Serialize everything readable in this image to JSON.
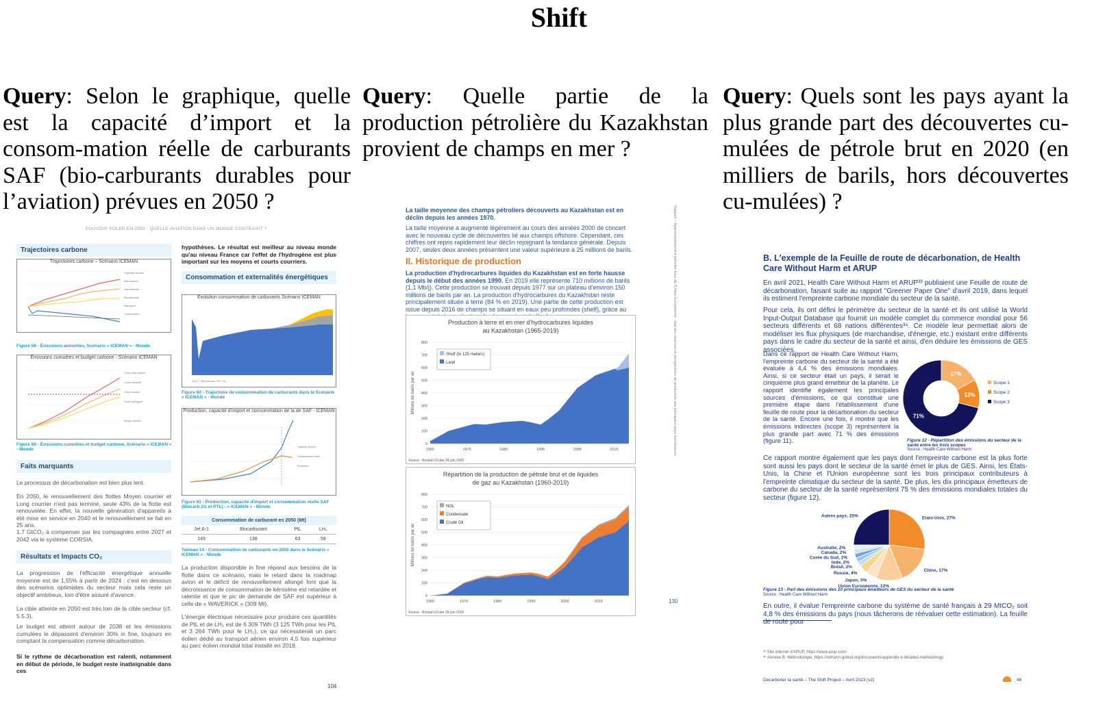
{
  "header": {
    "title": "Shift"
  },
  "queries": [
    {
      "label": "Query",
      "text": ":  Selon le graphique, quelle est la capacité d’import et la consom-mation réelle de carburants SAF (bio-carburants durables pour l’aviation) prévues en 2050 ?"
    },
    {
      "label": "Query",
      "text": ": Quelle partie de la production pétrolière du Kazakhstan provient de champs en mer ?"
    },
    {
      "label": "Query",
      "text": ": Quels sont les pays ayant la plus grande part des découvertes cu-mulées de pétrole brut en 2020 (en milliers de barils, hors découvertes cu-mulées) ?"
    }
  ],
  "doc1": {
    "running_header": "POUVOIR VOLER EN 2050 : QUELLE AVIATION DANS UN MONDE CONTRAINT ?",
    "sec_trajectoires": "Trajectoires carbone",
    "chart1_title": "Trajectoires carbone – Scénario ICEMAN",
    "fig58": "Figure 58 - Émissions annuelles, Scénario « ICEMAN » - Monde",
    "chart2_title": "Émissions cumulées et budget carbone - Scénario ICEMAN",
    "fig59": "Figure 59 - Émissions cumulées et budget carbone, Scénario « ICEMAN » - Monde",
    "sec_faits": "Faits marquants",
    "faits_p1": "Le processus de décarbonation est bien plus lent.",
    "faits_p2": "En 2050, le renouvellement des flottes Moyen courrier et Long courrier n'est pas terminé, seule 43% de la flotte est renouvelée. En effet, la nouvelle génération d'appareils a été mise en service en 2040 et le renouvellement se fait en 25 ans.",
    "faits_p3": "1,7 GtCO₂ à compenser par les compagnies entre 2027 et 2042 via le système CORSIA.",
    "sec_resultats": "Résultats et Impacts CO₂",
    "res_p1": "La progression de l'efficacité énergétique annuelle moyenne est de 1,55% à partir de 2024 : c'est en dessous des scénarios optimistes du secteur mais cela reste un objectif ambitieux, loin d'être assuré d'avance.",
    "res_p2": "La cible atteinte en 2050 est très loin de la cible secteur (cf. 5.5.3).",
    "res_p3": "Le budget est atteint autour de 2038 et les émissions cumulées le dépassent d'environ 30% in fine, toujours en comptant la compensation comme décarbonation.",
    "res_bold": "Si le rythme de décarbonation est ralenti, notamment en début de période, le budget reste inatteignable dans ces",
    "right_intro": "hypothèses. Le résultat est meilleur au niveau monde qu'au niveau France car l'effet de l'hydrogène est plus important sur les moyens et courts courriers.",
    "sec_conso": "Consommation et externalités énergétiques",
    "chart3_title": "Evolution consommation de carburants  Scénario ICEMAN",
    "fig60": "Figure 60 - Trajectoire de consommation de carburants dans le Scénario « ICEMAN » - Monde",
    "chart4_title": "Production, capacité d'import et consommation de la de SAF - ICEMAN",
    "fig61": "Figure 61 - Production, capacité d'import et consommation réelle SAF (Biocarb 2G et PTL) - « ICEMAN » - Monde",
    "table_title": "Consommation de carburant en 2050 (Mt)",
    "table_headers": [
      "Jet A-1",
      "Biocarburant",
      "PtL",
      "LH₂"
    ],
    "table_values": [
      "149",
      "138",
      "63",
      "58"
    ],
    "tab14": "Tableau 14 - Consommation de carburants en 2050 dans le Scénario « ICEMAN » - Monde",
    "right_p1": "La production disponible in fine répond aux besoins de la flotte dans ce scénario, mais le retard dans la roadmap avion et le déficit de renouvellement allongé font que la décroissance de consommation de kérosène est retardée et ralentie et que le pic de demande de SAF est supérieur à celle de « WAVERICK » (309 Mt).",
    "right_p2": "L'énergie électrique nécessaire pour produire ces quantités de PtL et de LH₂ est de 6 309 TWh (3 125 TWh pour les PtL et 3 264 TWh pour le LH₂), ce qui nécessiterait un parc éolien dédié au transport aérien environ 4,5 fois supérieur au parc éolien mondial total installé en 2019.",
    "page_num": "104"
  },
  "doc2": {
    "heading1": "La taille moyenne des champs pétroliers découverts au Kazakhstan est en déclin depuis les années 1970.",
    "p1": "La taille moyenne a augmenté légèrement au cours des années 2000 de concert avec le nouveau cycle de découvertes lié aux champs offshore. Cependant, ces chiffres ont repris rapidement leur déclin rejoignant la tendance générale. Depuis 2007, seules deux années présentent une valeur supérieure à 25 millions de barils.",
    "section": "II. Historique de production",
    "p2_bold": "La production d'hydrocarbures liquides du Kazakhstan est en forte hausse depuis le début des années 1990.",
    "p2": " En 2019 elle représente 710 millions de barils (1,1 Mb/j). Cette production se trouvait depuis 1977 sur un plateau d'environ 150 millions de barils par an. La production d'hydrocarbures du Kazakhstan reste principalement située à terre (84 % en 2019). Une partie de cette production est issue depuis 2016 de champs se situant en eaux peu profondes (shelf), grâce au lancement de la production du champ géant de Kashagan.",
    "side_text": "Rapport – Approvisionnement pétrolier futur de l'Union Européenne : état des réserves et perspectives de production des principaux pays fournisseurs",
    "page_num": "130"
  },
  "doc3": {
    "heading": "B. L'exemple de la Feuille de route de décarbonation, de Health Care Without Harm et ARUP",
    "p1": "En avril 2021, Health Care Without Harm et ARUP³³ publiaient une Feuille de route de décarbonation, faisant suite au rapport \"Greener Paper One\" d'avril 2019, dans lequel ils estiment l'empreinte carbone mondiale du secteur de la santé.",
    "p2": "Pour cela, ils ont défini le périmètre du secteur de la santé et ils ont utilisé la World Input-Output Database qui fournit un modèle complet du commerce mondial pour 56 secteurs différents et 68 nations différentes³⁴. Ce modèle leur permettait alors de modéliser les flux physiques (de marchandise, d'énergie, etc.) existant entre différents pays dans le cadre du secteur de la santé et ainsi, d'en déduire les émissions de GES associées.",
    "p3": "Dans ce rapport de Health Care Without Harm, l'empreinte carbone du secteur de la santé a été évaluée à 4,4 % des émissions mondiales. Ainsi, si ce secteur était un pays, il serait le cinquième plus grand émetteur de la planète. Le rapport identifie également les principales sources d'émissions, ce qui constitue une première étape dans l'établissement d'une feuille de route pour la décarbonation du secteur de la santé. Encore une fois, il montre que les émissions indirectes (scope 3) représentent la plus grande part avec 71 % des émissions (figure 11).",
    "fig12": "Figure 12 - Répartition des émissions du secteur de la santé entre les trois scopes",
    "fig12_src": "Source : Health Care Without Harm",
    "p4": "Ce rapport montre également que les pays dont l'empreinte carbone est la plus forte sont aussi les pays dont le secteur de la santé émet le plus de GES. Ainsi, les États-Unis, la Chine et l'Union européenne sont les trois principaux contributeurs à l'empreinte climatique du secteur de la santé. De plus, les dix principaux émetteurs de carbone du secteur de la santé représentent 75 % des émissions mondiales totales du secteur (figure 12).",
    "fig13": "Figure 13 - Part des émissions des 10 principaux émetteurs de GES du secteur de la santé",
    "fig13_src": "Source : Health Care Without Harm",
    "p5": "En outre, il évalue l'empreinte carbone du système de santé français à 29 MtCO₂ soit 4,8 % des émissions du pays (nous tâcherons de réévaluer cette estimation). La feuille de route pour",
    "foot1": "³³ Site internet d'ARUP, https://www.arup.com/",
    "foot2": "³⁴ Annexe B. Méthodologie, https://noharm-global.org/documents/appendix-b-detailed-methodology",
    "footer": "Décarboner la santé – The Shift Project – Avril 2023 (v2)",
    "page_num": "46"
  },
  "chart_data": [
    {
      "type": "area",
      "title": "Production à terre et en mer d'hydrocarbures liquides au Kazakhstan  (1965-2019)",
      "ylabel": "Millions de barils par an",
      "ylim": [
        0,
        800
      ],
      "yticks": [
        "0",
        "100",
        "200",
        "300",
        "400",
        "500",
        "600",
        "700",
        "800"
      ],
      "xticks": [
        "1965",
        "1975",
        "1985",
        "1995",
        "2005",
        "2015"
      ],
      "x": [
        1965,
        1970,
        1975,
        1977,
        1980,
        1985,
        1990,
        1992,
        1995,
        1997,
        2000,
        2005,
        2010,
        2015,
        2016,
        2019
      ],
      "series": [
        {
          "name": "Shelf (to 125 meters)",
          "values": [
            0,
            0,
            0,
            0,
            0,
            0,
            0,
            0,
            0,
            0,
            0,
            0,
            0,
            0,
            20,
            110
          ]
        },
        {
          "name": "Land",
          "values": [
            20,
            100,
            140,
            155,
            150,
            170,
            180,
            170,
            150,
            190,
            260,
            440,
            540,
            590,
            580,
            600
          ]
        }
      ],
      "colors": [
        "#a9bfe6",
        "#4472c4"
      ],
      "source": "Source : Rystad UCube 28 juin 2020"
    },
    {
      "type": "area",
      "title": "Répartition de la production de pétrole brut et de liquides de gaz au Kazakhstan (1960-2019)",
      "ylabel": "Millions de barils par an",
      "ylim": [
        0,
        800
      ],
      "yticks": [
        "0",
        "100",
        "200",
        "300",
        "400",
        "500",
        "600",
        "700",
        "800"
      ],
      "xticks": [
        "1960",
        "1970",
        "1980",
        "1990",
        "2000",
        "2010"
      ],
      "x": [
        1960,
        1965,
        1970,
        1975,
        1977,
        1980,
        1985,
        1990,
        1992,
        1995,
        1997,
        2000,
        2005,
        2010,
        2015,
        2019
      ],
      "series": [
        {
          "name": "NGL",
          "values": [
            0,
            0,
            2,
            2,
            2,
            2,
            3,
            3,
            3,
            3,
            4,
            5,
            8,
            10,
            12,
            14
          ]
        },
        {
          "name": "Condensate",
          "values": [
            0,
            0,
            5,
            8,
            10,
            10,
            12,
            15,
            15,
            18,
            25,
            40,
            70,
            90,
            100,
            110
          ]
        },
        {
          "name": "Crude Oil",
          "values": [
            0,
            15,
            95,
            135,
            145,
            140,
            160,
            165,
            155,
            130,
            165,
            225,
            380,
            460,
            500,
            590
          ]
        }
      ],
      "colors": [
        "#a5a5a5",
        "#ed7d31",
        "#4472c4"
      ],
      "source": "Source : Rystad UCube 28 juin 2020"
    },
    {
      "type": "pie",
      "title": "",
      "categories": [
        "Scope 1",
        "Scope 2",
        "Scope 3"
      ],
      "values": [
        17,
        12,
        71
      ],
      "labels": [
        "17%",
        "12%",
        "71%"
      ],
      "colors": [
        "#f6b26b",
        "#f28c28",
        "#14145a"
      ]
    },
    {
      "type": "pie",
      "title": "",
      "categories": [
        "Etats-Unis",
        "Chine",
        "Union Européenne",
        "Japon",
        "Russie",
        "Brésil",
        "Inde",
        "Corée du Sud",
        "Canada",
        "Australie",
        "Autres pays"
      ],
      "values": [
        27,
        17,
        12,
        5,
        4,
        2,
        2,
        2,
        2,
        2,
        25
      ],
      "labels": [
        "Etats-Unis, 27%",
        "Chine, 17%",
        "Union Européenne, 12%",
        "Japon, 5%",
        "Russie, 4%",
        "Brésil, 2%",
        "Inde, 2%",
        "Corée du Sud, 2%",
        "Canada, 2%",
        "Australie, 2%",
        "Autres pays, 25%"
      ],
      "colors": [
        "#f28c28",
        "#f6b26b",
        "#f9cd9c",
        "#fbe3c8",
        "#f2d98a",
        "#c6d9f1",
        "#9fc5e8",
        "#6fa8dc",
        "#cfe2f3",
        "#e6eef8",
        "#14145a"
      ]
    }
  ]
}
